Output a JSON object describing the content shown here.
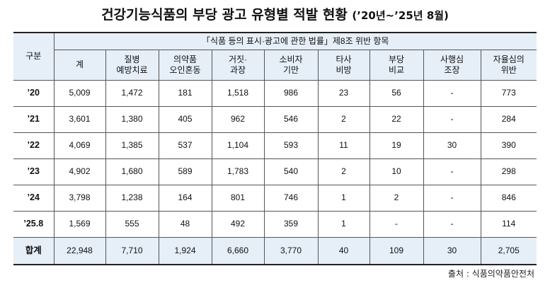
{
  "title": {
    "main": "건강기능식품의 부당 광고 유형별 적발 현황",
    "period": "(’20년~’25년 8월)"
  },
  "table": {
    "category_label": "구분",
    "group_header": "「식품 등의 표시·광고에 관한 법률」제8조 위반 항목",
    "columns": [
      [
        "계"
      ],
      [
        "질병",
        "예방치료"
      ],
      [
        "의약품",
        "오인혼동"
      ],
      [
        "거짓·",
        "과장"
      ],
      [
        "소비자",
        "기만"
      ],
      [
        "타사",
        "비방"
      ],
      [
        "부당",
        "비교"
      ],
      [
        "사행심",
        "조장"
      ],
      [
        "자율심의",
        "위반"
      ]
    ],
    "rows": [
      {
        "label": "’20",
        "values": [
          "5,009",
          "1,472",
          "181",
          "1,518",
          "986",
          "23",
          "56",
          "-",
          "773"
        ]
      },
      {
        "label": "’21",
        "values": [
          "3,601",
          "1,380",
          "405",
          "962",
          "546",
          "2",
          "22",
          "-",
          "284"
        ]
      },
      {
        "label": "’22",
        "values": [
          "4,069",
          "1,385",
          "537",
          "1,104",
          "593",
          "11",
          "19",
          "30",
          "390"
        ]
      },
      {
        "label": "’23",
        "values": [
          "4,902",
          "1,680",
          "589",
          "1,783",
          "540",
          "2",
          "10",
          "-",
          "298"
        ]
      },
      {
        "label": "’24",
        "values": [
          "3,798",
          "1,238",
          "164",
          "801",
          "746",
          "1",
          "2",
          "-",
          "846"
        ]
      },
      {
        "label": "’25.8",
        "values": [
          "1,569",
          "555",
          "48",
          "492",
          "359",
          "1",
          "-",
          "-",
          "114"
        ]
      }
    ],
    "total": {
      "label": "합계",
      "values": [
        "22,948",
        "7,710",
        "1,924",
        "6,660",
        "3,770",
        "40",
        "109",
        "30",
        "2,705"
      ]
    }
  },
  "source": "출처 : 식품의약품안전처"
}
